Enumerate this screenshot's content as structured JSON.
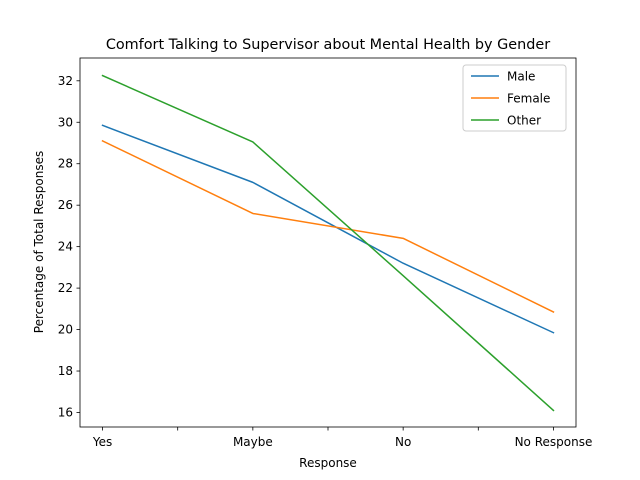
{
  "chart_data": {
    "type": "line",
    "title": "Comfort Talking to Supervisor about Mental Health by Gender",
    "xlabel": "Response",
    "ylabel": "Percentage of Total Responses",
    "categories": [
      "Yes",
      "Maybe",
      "No",
      "No Response"
    ],
    "ylim": [
      15.3,
      33.1
    ],
    "yticks": [
      16,
      18,
      20,
      22,
      24,
      26,
      28,
      30,
      32
    ],
    "ytick_labels": [
      "16",
      "18",
      "20",
      "22",
      "24",
      "26",
      "28",
      "30",
      "32"
    ],
    "grid": false,
    "legend_position": "top-right",
    "series": [
      {
        "name": "Male",
        "color": "#1f77b4",
        "values": [
          29.85,
          27.1,
          23.2,
          19.85
        ]
      },
      {
        "name": "Female",
        "color": "#ff7f0e",
        "values": [
          29.1,
          25.6,
          24.4,
          20.85
        ]
      },
      {
        "name": "Other",
        "color": "#2ca02c",
        "values": [
          32.25,
          29.05,
          22.6,
          16.1
        ]
      }
    ]
  }
}
